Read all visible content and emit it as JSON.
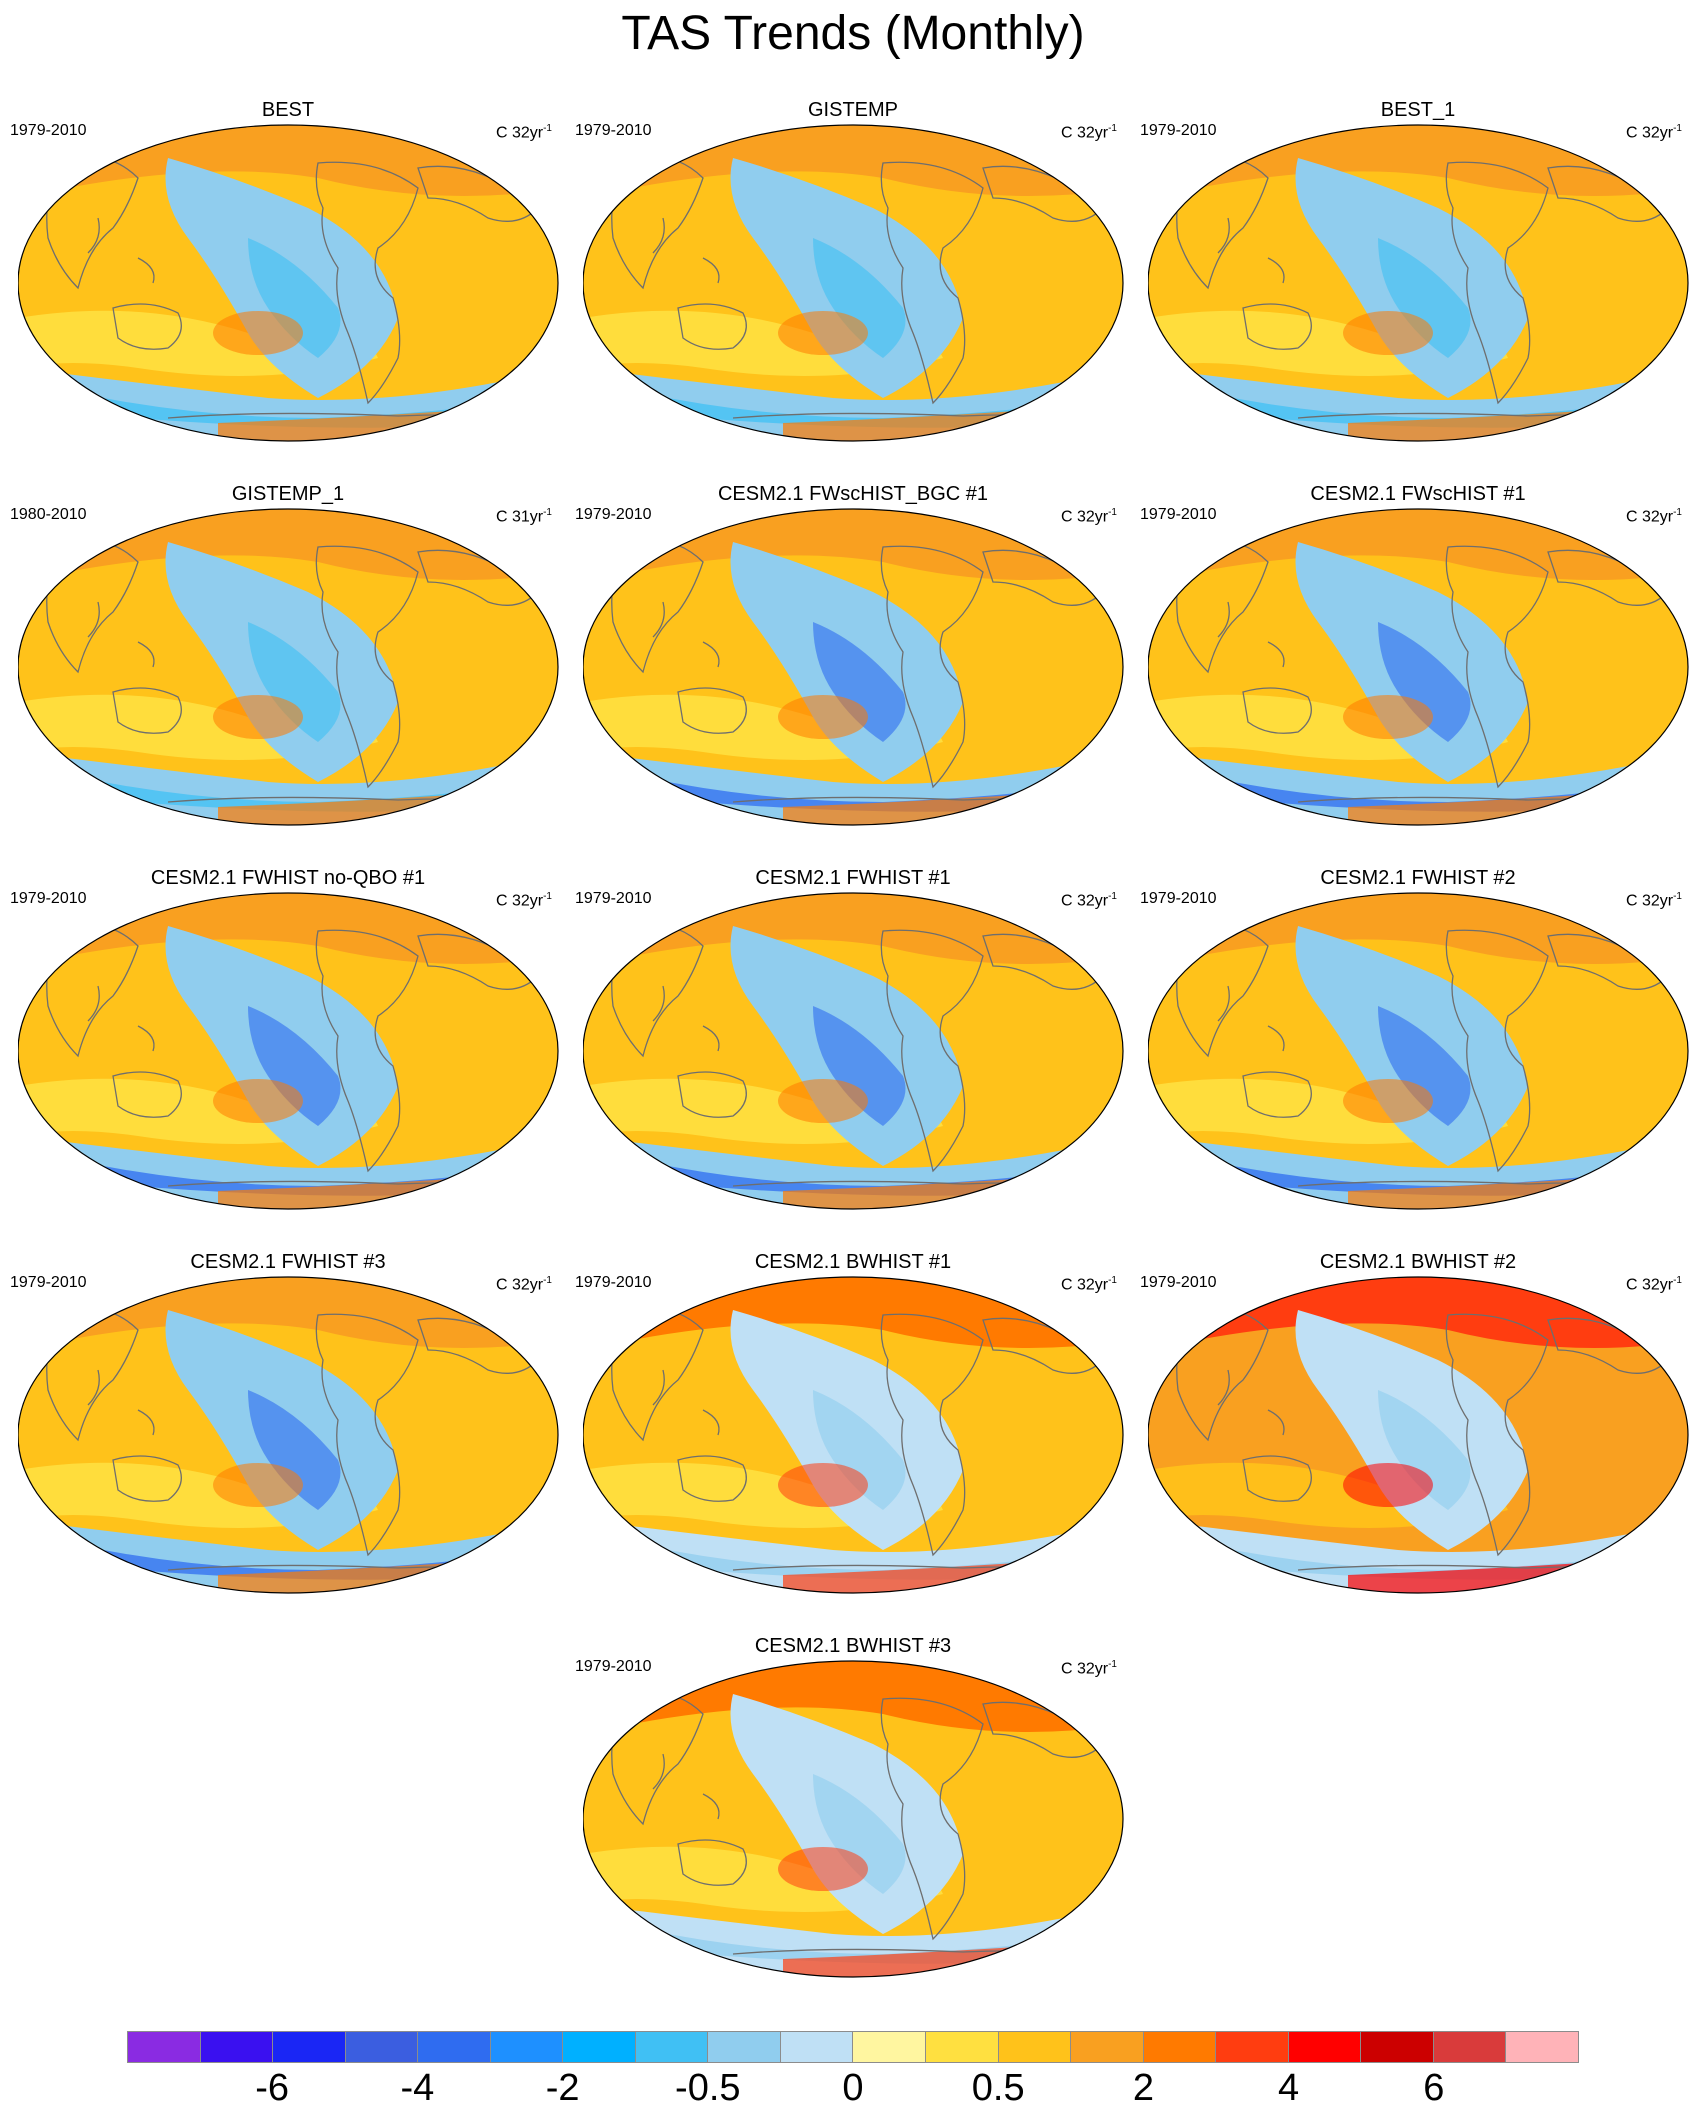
{
  "title": "TAS Trends (Monthly)",
  "panels": [
    {
      "name": "BEST",
      "period": "1979-2010",
      "units_prefix": "C 32yr",
      "units_exp": "-1",
      "palette": "obs"
    },
    {
      "name": "GISTEMP",
      "period": "1979-2010",
      "units_prefix": "C 32yr",
      "units_exp": "-1",
      "palette": "obs"
    },
    {
      "name": "BEST_1",
      "period": "1979-2010",
      "units_prefix": "C 32yr",
      "units_exp": "-1",
      "palette": "obs"
    },
    {
      "name": "GISTEMP_1",
      "period": "1980-2010",
      "units_prefix": "C 31yr",
      "units_exp": "-1",
      "palette": "obs"
    },
    {
      "name": "CESM2.1 FWscHIST_BGC #1",
      "period": "1979-2010",
      "units_prefix": "C 32yr",
      "units_exp": "-1",
      "palette": "model"
    },
    {
      "name": "CESM2.1 FWscHIST #1",
      "period": "1979-2010",
      "units_prefix": "C 32yr",
      "units_exp": "-1",
      "palette": "model"
    },
    {
      "name": "CESM2.1 FWHIST no-QBO #1",
      "period": "1979-2010",
      "units_prefix": "C 32yr",
      "units_exp": "-1",
      "palette": "model"
    },
    {
      "name": "CESM2.1 FWHIST #1",
      "period": "1979-2010",
      "units_prefix": "C 32yr",
      "units_exp": "-1",
      "palette": "model"
    },
    {
      "name": "CESM2.1 FWHIST #2",
      "period": "1979-2010",
      "units_prefix": "C 32yr",
      "units_exp": "-1",
      "palette": "model"
    },
    {
      "name": "CESM2.1 FWHIST #3",
      "period": "1979-2010",
      "units_prefix": "C 32yr",
      "units_exp": "-1",
      "palette": "model"
    },
    {
      "name": "CESM2.1 BWHIST #1",
      "period": "1979-2010",
      "units_prefix": "C 32yr",
      "units_exp": "-1",
      "palette": "warm"
    },
    {
      "name": "CESM2.1 BWHIST #2",
      "period": "1979-2010",
      "units_prefix": "C 32yr",
      "units_exp": "-1",
      "palette": "hot"
    },
    {
      "name": "CESM2.1 BWHIST #3",
      "period": "1979-2010",
      "units_prefix": "C 32yr",
      "units_exp": "-1",
      "palette": "warm"
    }
  ],
  "colorbar": {
    "colors": [
      "#8a2be2",
      "#3a10f0",
      "#1a26f5",
      "#3b5ee0",
      "#2f6cf0",
      "#1e90ff",
      "#00b0ff",
      "#40c0f4",
      "#90cdee",
      "#bfe0f5",
      "#fff6a0",
      "#ffe040",
      "#ffc21a",
      "#f9a020",
      "#ff7a00",
      "#ff3d10",
      "#ff0000",
      "#cc0000",
      "#d93b3b",
      "#ffb3b8"
    ],
    "labels": [
      "-6",
      "-4",
      "-2",
      "-0.5",
      "0",
      "0.5",
      "2",
      "4",
      "6"
    ]
  },
  "palettes": {
    "obs": {
      "bg": "#ffc21a",
      "north": "#f9a020",
      "mid": "#ffe040",
      "cold": "#90cdee",
      "cold2": "#40c0f4",
      "warm": "#ff7a00"
    },
    "model": {
      "bg": "#ffc21a",
      "north": "#f9a020",
      "mid": "#ffe040",
      "cold": "#90cdee",
      "cold2": "#2f6cf0",
      "warm": "#ff7a00"
    },
    "warm": {
      "bg": "#ffc21a",
      "north": "#ff7a00",
      "mid": "#ffe040",
      "cold": "#bfe0f5",
      "cold2": "#90cdee",
      "warm": "#ff3d10"
    },
    "hot": {
      "bg": "#f9a020",
      "north": "#ff3d10",
      "mid": "#ffc21a",
      "cold": "#bfe0f5",
      "cold2": "#90cdee",
      "warm": "#ff0000"
    }
  }
}
